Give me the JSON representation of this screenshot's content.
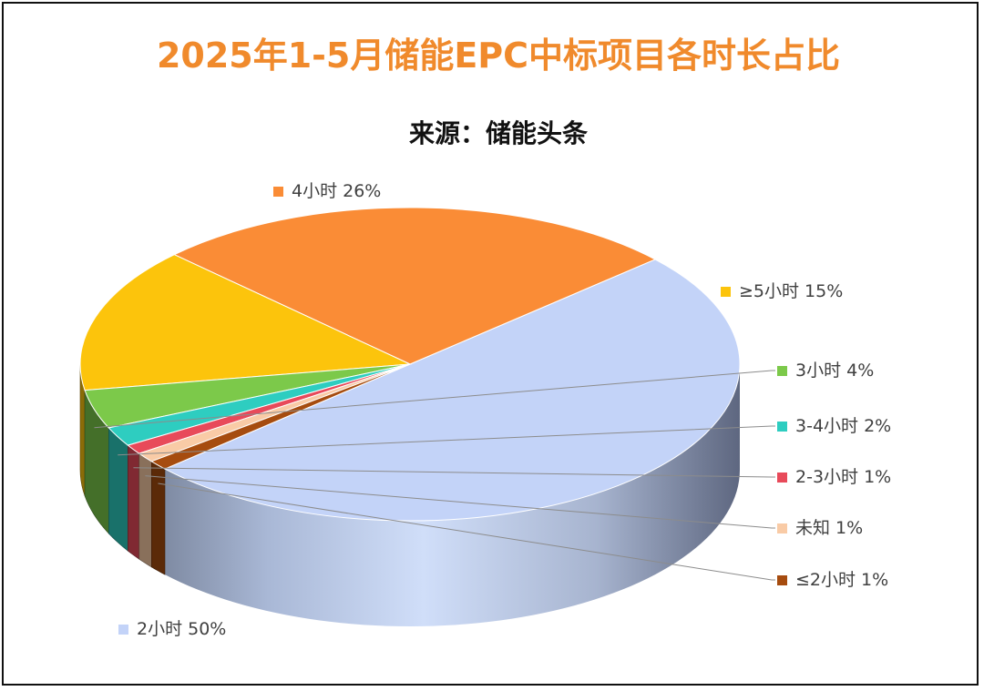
{
  "chart_data": {
    "type": "pie",
    "style": "3d",
    "title": "2025年1-5月储能EPC中标项目各时长占比",
    "subtitle": "来源：储能头条",
    "legend": "data labels with color markers beside slices",
    "slices": [
      {
        "label": "2小时",
        "value": 50,
        "display": "2小时 50%",
        "color": "#C3D3F8"
      },
      {
        "label": "4小时",
        "value": 26,
        "display": "4小时 26%",
        "color": "#FA8C36"
      },
      {
        "label": "≥5小时",
        "value": 15,
        "display": "≥5小时 15%",
        "color": "#FCC40C"
      },
      {
        "label": "3小时",
        "value": 4,
        "display": "3小时 4%",
        "color": "#7CC94A"
      },
      {
        "label": "3-4小时",
        "value": 2,
        "display": "3-4小时 2%",
        "color": "#2ECDC0"
      },
      {
        "label": "2-3小时",
        "value": 1,
        "display": "2-3小时 1%",
        "color": "#E84A5A"
      },
      {
        "label": "未知",
        "value": 1,
        "display": "未知 1%",
        "color": "#F9CBA6"
      },
      {
        "label": "≤2小时",
        "value": 1,
        "display": "≤2小时 1%",
        "color": "#A64C0F"
      }
    ]
  },
  "colors": {
    "title": "#F08A2C",
    "subtitle": "#111111",
    "label": "#404040",
    "leader": "#8C8C8C",
    "frame": "#111111"
  }
}
